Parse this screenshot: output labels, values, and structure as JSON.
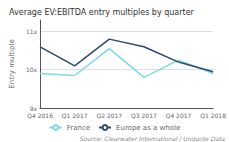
{
  "chart_data": {
    "type": "line",
    "title": "Average EV:EBITDA entry multiples by quarter",
    "y_label": "Entry multiple",
    "annotations": [
      "Source: Clearwater International / Unquote Data"
    ],
    "categories": [
      "Q4 2016",
      "Q1 2017",
      "Q2 2017",
      "Q3 2017",
      "Q4 2017",
      "Q1 2018"
    ],
    "series": [
      {
        "name": "France",
        "color": "#7dd8e8",
        "values": [
          9.9,
          9.85,
          10.55,
          9.8,
          10.25,
          9.9
        ]
      },
      {
        "name": "Europe as a whole",
        "color": "#2d4a6b",
        "values": [
          10.6,
          10.1,
          10.8,
          10.6,
          10.2,
          9.95
        ]
      }
    ],
    "ylim": [
      9.0,
      11.3
    ],
    "yticks": [
      {
        "value": 9,
        "label": "9x"
      },
      {
        "value": 10,
        "label": "10x"
      },
      {
        "value": 11,
        "label": "11x"
      }
    ],
    "grid": true,
    "legend": "bottom"
  }
}
